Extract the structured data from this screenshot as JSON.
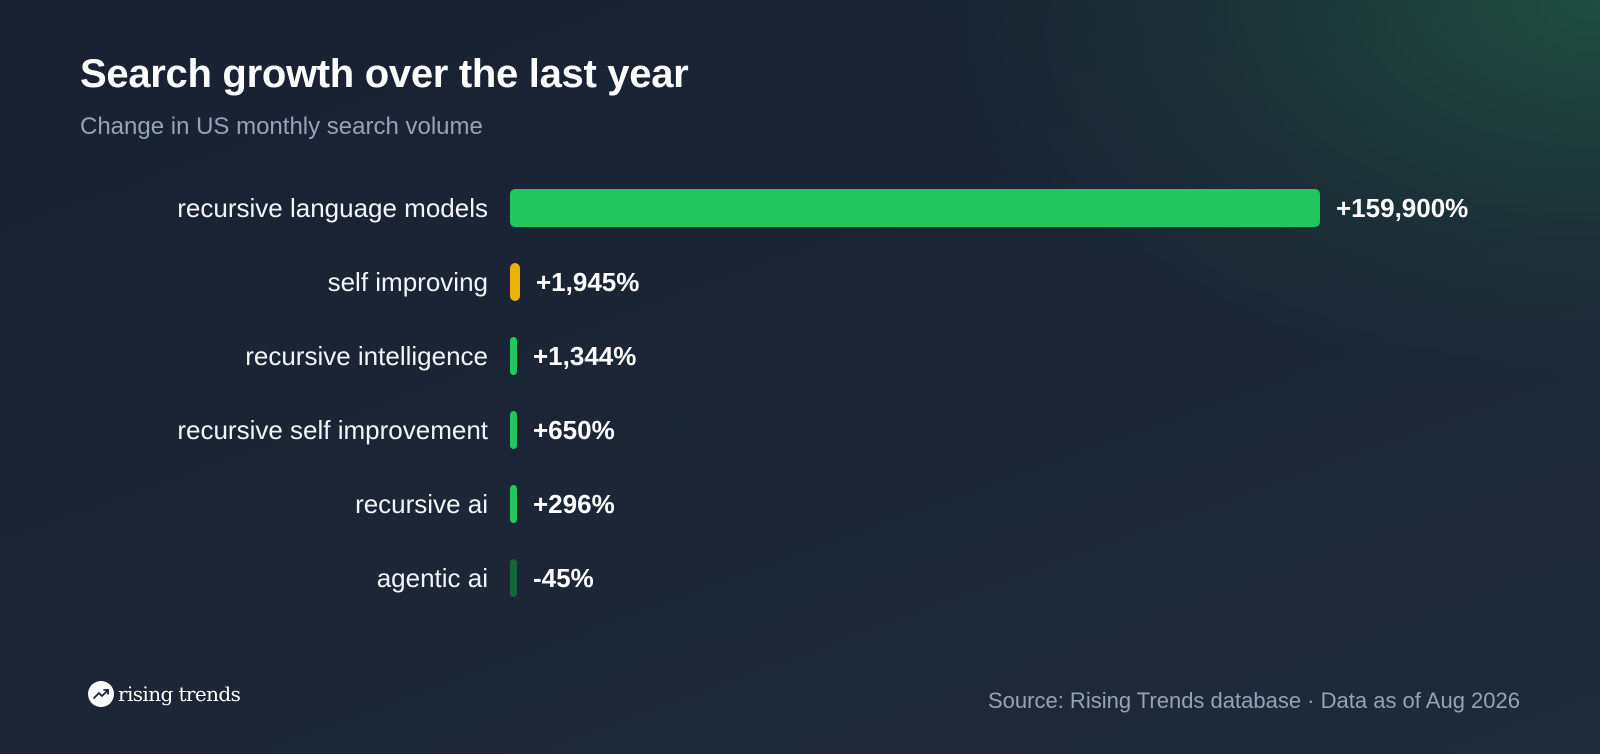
{
  "header": {
    "title": "Search growth over the last year",
    "subtitle": "Change in US monthly search volume"
  },
  "chart_data": {
    "type": "bar",
    "orientation": "horizontal",
    "title": "Search growth over the last year",
    "subtitle": "Change in US monthly search volume",
    "categories": [
      "recursive language models",
      "self improving",
      "recursive intelligence",
      "recursive self improvement",
      "recursive ai",
      "agentic ai"
    ],
    "values": [
      159900,
      1945,
      1344,
      650,
      296,
      -45
    ],
    "value_labels": [
      "+159,900%",
      "+1,945%",
      "+1,344%",
      "+650%",
      "+296%",
      "-45%"
    ],
    "bar_colors": [
      "#22c55e",
      "#eab308",
      "#22c55e",
      "#22c55e",
      "#22c55e",
      "#166534"
    ],
    "unit": "%",
    "grid": false,
    "legend": "none"
  },
  "footer": {
    "brand": "rising trends",
    "brand_icon": "trending-up-icon",
    "source": "Source: Rising Trends database · Data as of Aug 2026"
  },
  "colors": {
    "background": "#1b2535",
    "accent": "#22c55e",
    "highlight": "#eab308",
    "negative": "#166534",
    "muted_text": "#94a3b8"
  }
}
